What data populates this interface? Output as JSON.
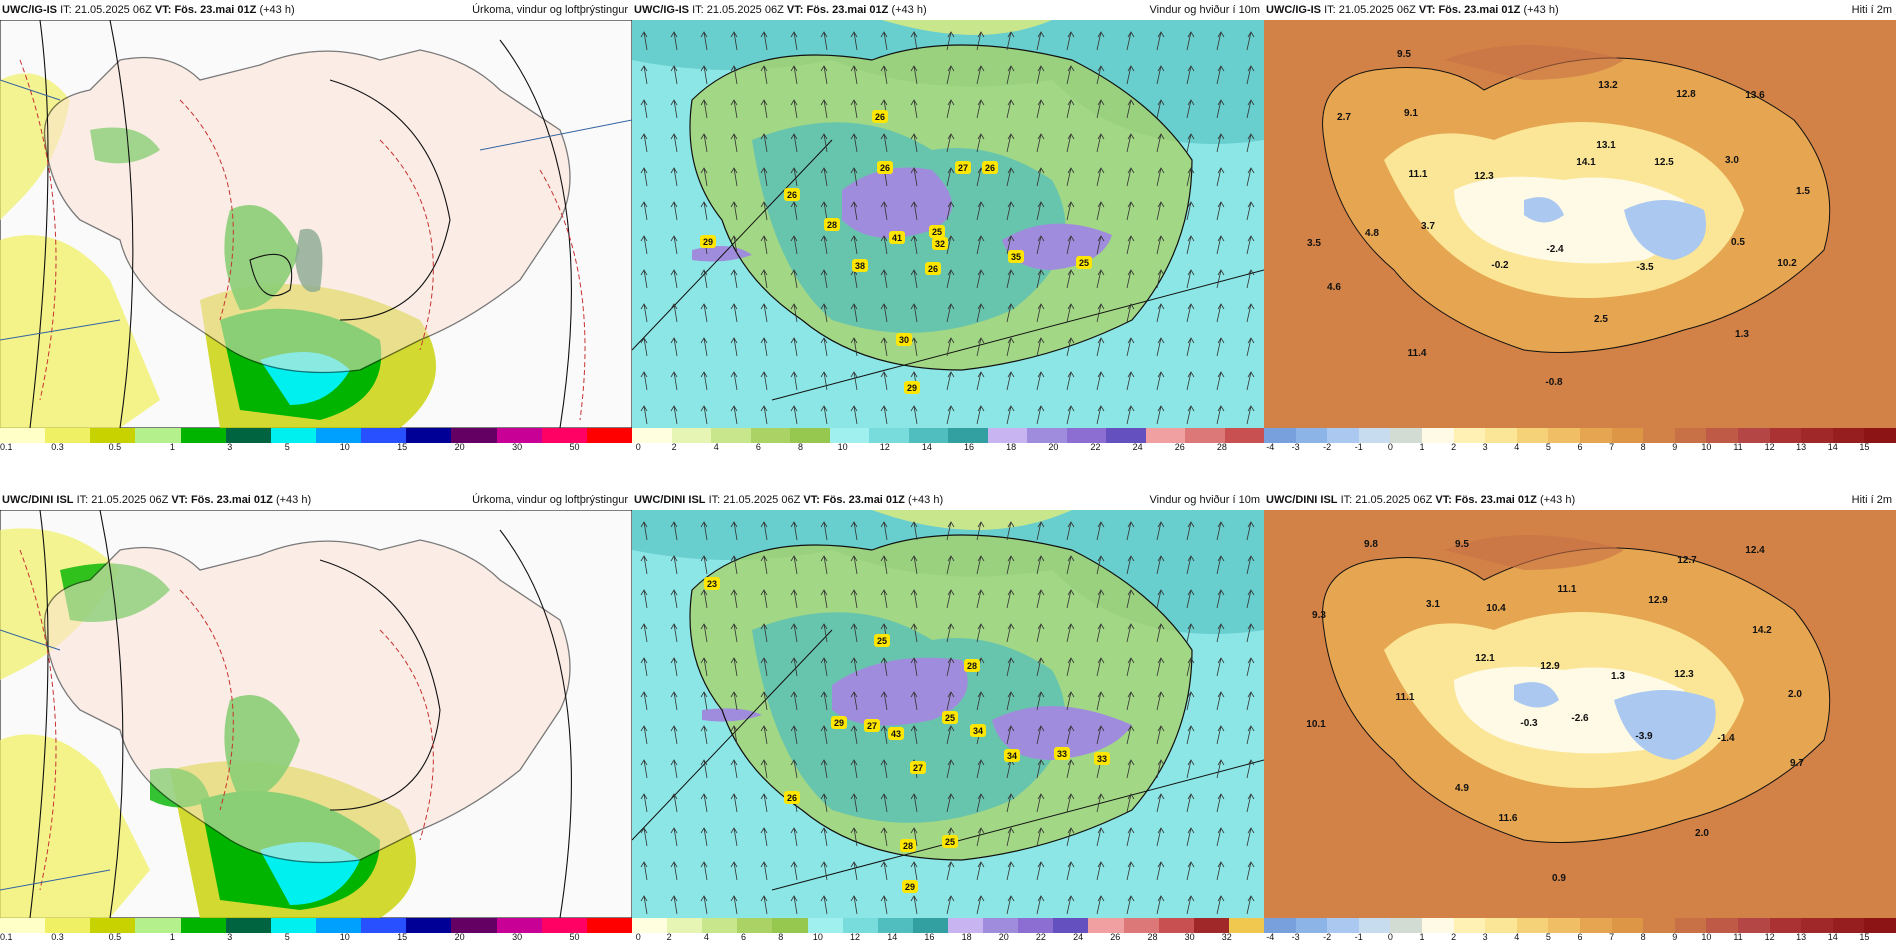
{
  "panels": [
    {
      "model": "UWC/IG-IS",
      "it_label": "IT:",
      "it_value": "21.05.2025 06Z",
      "vt_label": "VT:",
      "vt_value": "Fös. 23.mai 01Z",
      "lead": "(+43 h)",
      "title": "Úrkoma, vindur og loftþrýstingur",
      "legend_colors": [
        "#ffffc8",
        "#f0f064",
        "#c8d200",
        "#b4f08c",
        "#00b400",
        "#006440",
        "#00f0f0",
        "#00a0ff",
        "#2850ff",
        "#000096",
        "#640064",
        "#c80096",
        "#ff0064",
        "#ff0000"
      ],
      "legend_ticks": [
        "0.1",
        "0.3",
        "0.5",
        "1",
        "3",
        "5",
        "10",
        "15",
        "20",
        "30",
        "50"
      ]
    },
    {
      "model": "UWC/IG-IS",
      "it_label": "IT:",
      "it_value": "21.05.2025 06Z",
      "vt_label": "VT:",
      "vt_value": "Fös. 23.mai 01Z",
      "lead": "(+43 h)",
      "title": "Vindur og hviður í 10m",
      "legend_colors": [
        "#ffffe0",
        "#e6f5b4",
        "#c8e68c",
        "#aad264",
        "#96c850",
        "#a0f0f0",
        "#78dcdc",
        "#50bebe",
        "#32a0a0",
        "#c8b4f0",
        "#a08cdc",
        "#8c6ed2",
        "#6450be",
        "#f0a0a0",
        "#dc7878",
        "#c85050"
      ],
      "legend_ticks": [
        "0",
        "2",
        "4",
        "6",
        "8",
        "10",
        "12",
        "14",
        "16",
        "18",
        "20",
        "22",
        "24",
        "26",
        "28"
      ],
      "wind_labels": [
        "29",
        "26",
        "28",
        "26",
        "27",
        "26",
        "26",
        "25",
        "41",
        "32",
        "38",
        "26",
        "35",
        "25",
        "30",
        "29"
      ]
    },
    {
      "model": "UWC/IG-IS",
      "it_label": "IT:",
      "it_value": "21.05.2025 06Z",
      "vt_label": "VT:",
      "vt_value": "Fös. 23.mai 01Z",
      "lead": "(+43 h)",
      "title": "Hiti í 2m",
      "legend_colors": [
        "#78a0dc",
        "#8cb4e6",
        "#aac8f0",
        "#c8dcf0",
        "#d2dcd2",
        "#fffae6",
        "#fff0b4",
        "#fae696",
        "#f5d278",
        "#f0be64",
        "#e6a550",
        "#dc9646",
        "#d28246",
        "#c87046",
        "#be5a46",
        "#b44646",
        "#aa3232",
        "#a02828",
        "#961e1e",
        "#8c1414"
      ],
      "legend_ticks": [
        "-4",
        "-3",
        "-2",
        "-1",
        "0",
        "1",
        "2",
        "3",
        "4",
        "5",
        "6",
        "7",
        "8",
        "9",
        "10",
        "11",
        "12",
        "13",
        "14",
        "15"
      ],
      "temp_labels": [
        "9.5",
        "2.7",
        "9.1",
        "13.2",
        "12.8",
        "13.6",
        "14.1",
        "13.1",
        "12.5",
        "3.0",
        "11.1",
        "12.3",
        "1.5",
        "4.8",
        "3.7",
        "3.5",
        "-0.2",
        "-2.4",
        "0.5",
        "10.2",
        "4.6",
        "-3.5",
        "2.5",
        "11.4",
        "1.3",
        "-0.8"
      ]
    },
    {
      "model": "UWC/DINI ISL",
      "it_label": "IT:",
      "it_value": "21.05.2025 06Z",
      "vt_label": "VT:",
      "vt_value": "Fös. 23.mai 01Z",
      "lead": "(+43 h)",
      "title": "Úrkoma, vindur og loftþrýstingur",
      "legend_colors": [
        "#ffffc8",
        "#f0f064",
        "#c8d200",
        "#b4f08c",
        "#00b400",
        "#006440",
        "#00f0f0",
        "#00a0ff",
        "#2850ff",
        "#000096",
        "#640064",
        "#c80096",
        "#ff0064",
        "#ff0000"
      ],
      "legend_ticks": [
        "0.1",
        "0.3",
        "0.5",
        "1",
        "3",
        "5",
        "10",
        "15",
        "20",
        "30",
        "50"
      ]
    },
    {
      "model": "UWC/DINI ISL",
      "it_label": "IT:",
      "it_value": "21.05.2025 06Z",
      "vt_label": "VT:",
      "vt_value": "Fös. 23.mai 01Z",
      "lead": "(+43 h)",
      "title": "Vindur og hviður í 10m",
      "legend_colors": [
        "#ffffe0",
        "#e6f5b4",
        "#c8e68c",
        "#aad264",
        "#96c850",
        "#a0f0f0",
        "#78dcdc",
        "#50bebe",
        "#32a0a0",
        "#c8b4f0",
        "#a08cdc",
        "#8c6ed2",
        "#6450be",
        "#f0a0a0",
        "#dc7878",
        "#c85050",
        "#a02828",
        "#f0c850"
      ],
      "legend_ticks": [
        "0",
        "2",
        "4",
        "6",
        "8",
        "10",
        "12",
        "14",
        "16",
        "18",
        "20",
        "22",
        "24",
        "26",
        "28",
        "30",
        "32"
      ],
      "wind_labels": [
        "23",
        "25",
        "28",
        "29",
        "27",
        "43",
        "25",
        "34",
        "27",
        "34",
        "33",
        "33",
        "26",
        "28",
        "25",
        "29"
      ]
    },
    {
      "model": "UWC/DINI ISL",
      "it_label": "IT:",
      "it_value": "21.05.2025 06Z",
      "vt_label": "VT:",
      "vt_value": "Fös. 23.mai 01Z",
      "lead": "(+43 h)",
      "title": "Hiti í 2m",
      "legend_colors": [
        "#78a0dc",
        "#8cb4e6",
        "#aac8f0",
        "#c8dcf0",
        "#d2dcd2",
        "#fffae6",
        "#fff0b4",
        "#fae696",
        "#f5d278",
        "#f0be64",
        "#e6a550",
        "#dc9646",
        "#d28246",
        "#c87046",
        "#be5a46",
        "#b44646",
        "#aa3232",
        "#a02828",
        "#961e1e",
        "#8c1414"
      ],
      "legend_ticks": [
        "-4",
        "-3",
        "-2",
        "-1",
        "0",
        "1",
        "2",
        "3",
        "4",
        "5",
        "6",
        "7",
        "8",
        "9",
        "10",
        "11",
        "12",
        "13",
        "14",
        "15"
      ],
      "temp_labels": [
        "9.8",
        "9.5",
        "12.4",
        "12.7",
        "9.3",
        "3.1",
        "10.4",
        "11.1",
        "12.9",
        "14.2",
        "12.1",
        "12.9",
        "1.3",
        "12.3",
        "2.0",
        "10.1",
        "11.1",
        "-0.3",
        "-2.6",
        "-3.9",
        "-1.4",
        "9.7",
        "4.9",
        "11.6",
        "2.0",
        "0.9"
      ]
    }
  ]
}
